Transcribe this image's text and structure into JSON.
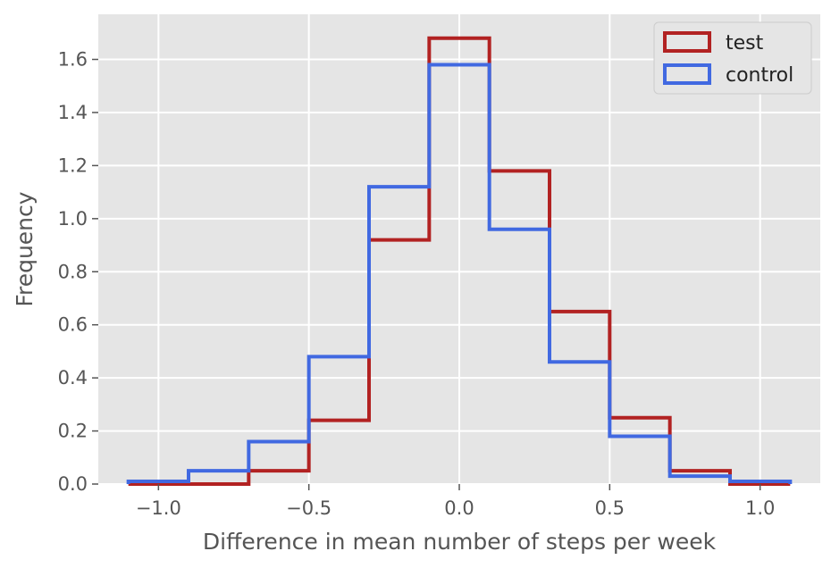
{
  "chart_data": {
    "type": "histogram-step",
    "title": "",
    "xlabel": "Difference in mean number of steps per week",
    "ylabel": "Frequency",
    "xlim": [
      -1.2,
      1.2
    ],
    "ylim": [
      0.0,
      1.77
    ],
    "grid": true,
    "x_ticks": [
      -1.0,
      -0.5,
      0.0,
      0.5,
      1.0
    ],
    "x_tick_labels": [
      "−1.0",
      "−0.5",
      "0.0",
      "0.5",
      "1.0"
    ],
    "y_ticks": [
      0.0,
      0.2,
      0.4,
      0.6,
      0.8,
      1.0,
      1.2,
      1.4,
      1.6
    ],
    "y_tick_labels": [
      "0.0",
      "0.2",
      "0.4",
      "0.6",
      "0.8",
      "1.0",
      "1.2",
      "1.4",
      "1.6"
    ],
    "bin_edges": [
      -1.1,
      -0.9,
      -0.7,
      -0.5,
      -0.3,
      -0.1,
      0.1,
      0.3,
      0.5,
      0.7,
      0.9,
      1.1
    ],
    "legend_position": "top-right",
    "series": [
      {
        "name": "test",
        "color": "#b22222",
        "values": [
          0.0,
          0.0,
          0.05,
          0.24,
          0.92,
          1.68,
          1.18,
          0.65,
          0.25,
          0.05,
          0.0
        ]
      },
      {
        "name": "control",
        "color": "#4169e1",
        "values": [
          0.01,
          0.05,
          0.16,
          0.48,
          1.12,
          1.58,
          0.96,
          0.46,
          0.18,
          0.03,
          0.01
        ]
      }
    ]
  }
}
